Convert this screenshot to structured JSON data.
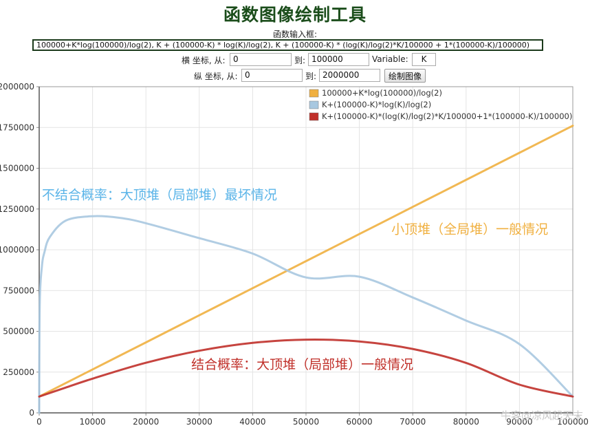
{
  "page": {
    "title": "函数图像绘制工具",
    "fn_label": "函数输入框:",
    "fn_value": "100000+K*log(100000)/log(2),      K + (100000-K) * log(K)/log(2),       K + (100000-K) * (log(K)/log(2)*K/100000 + 1*(100000-K)/100000)",
    "x_range_label": "横 坐标, 从:",
    "x_from": "0",
    "to_label": "到:",
    "x_to": "100000",
    "variable_label": "Variable:",
    "variable_value": "K",
    "y_range_label": "纵 坐标, 从:",
    "y_from": "0",
    "y_to": "2000000",
    "plot_button": "绘制图像",
    "watermark": "牛客@凉风起天末"
  },
  "chart_data": {
    "type": "line",
    "xlim": [
      0,
      100000
    ],
    "ylim": [
      0,
      2000000
    ],
    "x_ticks": [
      0,
      10000,
      20000,
      30000,
      40000,
      50000,
      60000,
      70000,
      80000,
      90000,
      100000
    ],
    "y_ticks": [
      0,
      250000,
      500000,
      750000,
      1000000,
      1250000,
      1500000,
      1750000,
      2000000
    ],
    "grid": true,
    "legend_position": "top-right",
    "series": [
      {
        "name": "100000+K*log(100000)/log(2)",
        "color": "#f0b040",
        "x": [
          0,
          10000,
          20000,
          30000,
          40000,
          50000,
          60000,
          70000,
          80000,
          90000,
          100000
        ],
        "y": [
          100000,
          266096,
          432193,
          598289,
          764386,
          930482,
          1096578,
          1262675,
          1428771,
          1594867,
          1760964
        ]
      },
      {
        "name": "K+(100000-K)*log(K)/log(2)",
        "color": "#a8c8e0",
        "x": [
          1,
          100,
          500,
          1000,
          2000,
          5000,
          10000,
          15000,
          20000,
          30000,
          40000,
          50000,
          60000,
          70000,
          80000,
          90000,
          100000
        ],
        "y": [
          1,
          664342,
          894850,
          987576,
          1078565,
          1179160,
          1205964,
          1196260,
          1163046,
          1071188,
          976888,
          830482,
          834865,
          707650,
          565877,
          421543,
          100000
        ]
      },
      {
        "name": "K+(100000-K)*(log(K)/log(2)*K/100000+1*(100000-K)/100000)",
        "color": "#c0302a",
        "x": [
          1,
          5000,
          10000,
          20000,
          30000,
          40000,
          50000,
          60000,
          70000,
          80000,
          90000,
          100000
        ],
        "y": [
          100000,
          155478,
          209596,
          307286,
          381128,
          429064,
          449120,
          437854,
          392006,
          306440,
          172830,
          100000
        ]
      }
    ],
    "annotations": [
      {
        "text": "不结合概率：大顶堆（局部堆）最坏情况",
        "color": "#5ab4e8",
        "x": 500,
        "y": 1310000
      },
      {
        "text": "小顶堆（全局堆）一般情况",
        "color": "#f0b040",
        "x": 66000,
        "y": 1100000
      },
      {
        "text": "结合概率：大顶堆（局部堆）一般情况",
        "color": "#c0302a",
        "x": 28500,
        "y": 270000
      }
    ]
  }
}
